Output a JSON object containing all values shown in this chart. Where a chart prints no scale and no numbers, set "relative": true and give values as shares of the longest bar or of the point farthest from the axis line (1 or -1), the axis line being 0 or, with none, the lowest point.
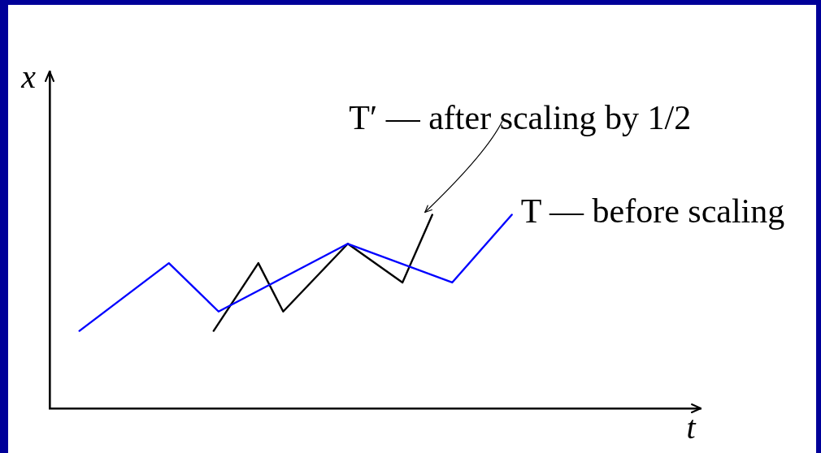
{
  "chart_data": {
    "type": "line",
    "relative": true,
    "xlabel": "t",
    "ylabel": "x",
    "marker": "none",
    "categories": [
      null,
      null,
      null,
      null,
      null,
      null,
      null,
      null,
      null,
      null,
      null,
      null,
      null,
      null,
      null,
      null,
      null,
      null,
      null,
      null,
      null,
      null,
      null,
      null,
      null,
      null,
      null,
      null,
      null,
      null,
      null,
      null,
      null,
      null,
      null,
      null,
      null,
      null,
      null,
      null,
      null,
      null,
      null,
      null,
      null,
      null,
      null,
      null,
      null,
      null,
      null,
      null,
      null,
      null,
      null,
      null,
      null,
      null,
      null,
      null,
      null,
      null,
      null,
      null,
      null,
      null,
      null,
      null,
      null,
      null,
      null,
      null,
      null,
      null,
      null,
      null,
      null,
      null,
      null,
      null,
      null,
      null,
      null,
      null,
      null,
      null,
      null,
      null,
      null,
      null,
      null,
      null,
      null,
      null,
      null,
      null,
      null,
      null,
      null,
      null,
      null,
      null,
      null,
      null,
      null,
      null,
      null,
      null,
      null,
      null,
      null,
      null,
      null,
      null,
      null,
      null,
      null,
      null,
      null,
      null,
      null,
      null,
      null,
      null,
      null,
      null,
      null,
      null,
      null,
      null,
      null,
      null
    ],
    "series": [
      {
        "name": "T — before scaling",
        "color": "#0000ff",
        "values": [
          null,
          null,
          null,
          null,
          null,
          null,
          0.4,
          null,
          null,
          null,
          null,
          null,
          null,
          null,
          null,
          null,
          null,
          null,
          null,
          null,
          null,
          null,
          null,
          null,
          0.75,
          null,
          null,
          null,
          null,
          null,
          null,
          null,
          null,
          null,
          0.5,
          null,
          null,
          null,
          null,
          null,
          null,
          null,
          null,
          null,
          null,
          null,
          null,
          null,
          null,
          null,
          null,
          null,
          null,
          null,
          null,
          null,
          null,
          null,
          null,
          null,
          0.85,
          null,
          null,
          null,
          null,
          null,
          null,
          null,
          null,
          null,
          null,
          null,
          null,
          null,
          null,
          null,
          null,
          null,
          null,
          null,
          null,
          0.65,
          null,
          null,
          null,
          null,
          null,
          null,
          null,
          null,
          null,
          null,
          null,
          1,
          null,
          null,
          null,
          null,
          null,
          null,
          null,
          null,
          null,
          null,
          null,
          null,
          null,
          null,
          null,
          null,
          null,
          null,
          null,
          null,
          null,
          null,
          null,
          null,
          null,
          null,
          null,
          null,
          null,
          null,
          null,
          null,
          null,
          null,
          null,
          null,
          null,
          null
        ]
      },
      {
        "name": "T′ — after scaling by 1/2",
        "color": "#000000",
        "values": [
          null,
          null,
          null,
          null,
          null,
          null,
          null,
          null,
          null,
          null,
          null,
          null,
          null,
          null,
          null,
          null,
          null,
          null,
          null,
          null,
          null,
          null,
          null,
          null,
          null,
          null,
          null,
          null,
          null,
          null,
          null,
          null,
          null,
          0.4,
          null,
          null,
          null,
          null,
          null,
          null,
          null,
          null,
          0.75,
          null,
          null,
          null,
          null,
          0.5,
          null,
          null,
          null,
          null,
          null,
          null,
          null,
          null,
          null,
          null,
          null,
          null,
          0.85,
          null,
          null,
          null,
          null,
          null,
          null,
          null,
          null,
          null,
          null,
          0.65,
          null,
          null,
          null,
          null,
          null,
          1,
          null,
          null,
          null,
          null,
          null,
          null,
          null,
          null,
          null,
          null,
          null,
          null,
          null,
          null,
          null,
          null,
          null,
          null,
          null,
          null,
          null,
          null,
          null,
          null,
          null,
          null,
          null,
          null,
          null,
          null,
          null,
          null,
          null,
          null,
          null,
          null,
          null,
          null,
          null,
          null,
          null,
          null,
          null,
          null,
          null,
          null,
          null,
          null,
          null,
          null,
          null,
          null,
          null,
          null
        ]
      }
    ]
  }
}
